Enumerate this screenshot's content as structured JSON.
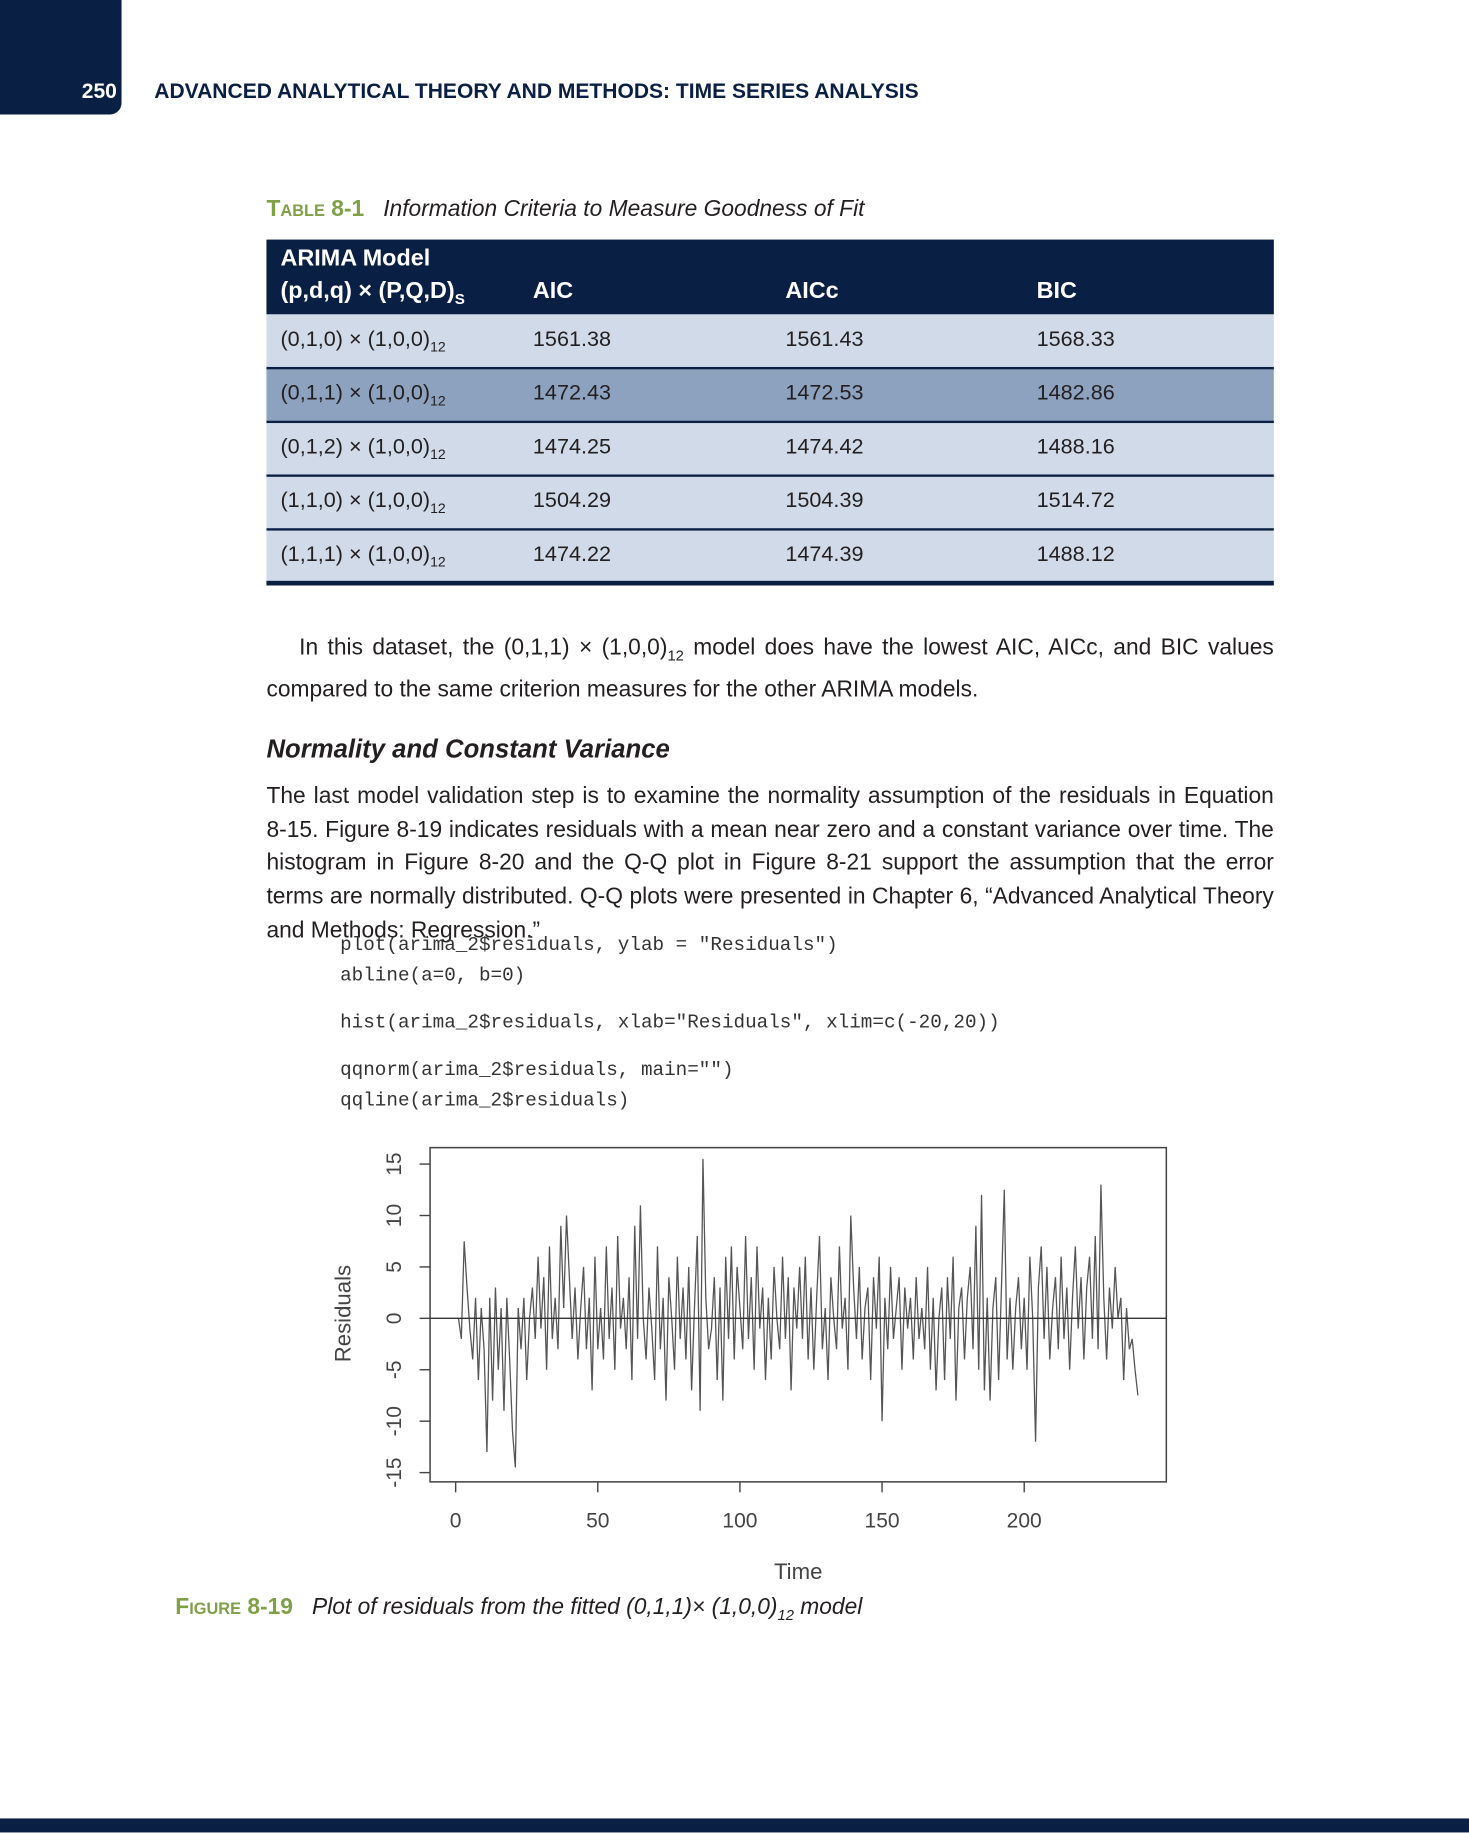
{
  "header": {
    "page_number": "250",
    "running_head": "ADVANCED ANALYTICAL THEORY AND METHODS: TIME SERIES ANALYSIS"
  },
  "table": {
    "label": "Table 8-1",
    "caption": "Information Criteria to Measure Goodness of Fit",
    "head": {
      "model_line1": "ARIMA Model",
      "model_line2": "(p,d,q) × (P,Q,D)",
      "model_sub": "S",
      "aic": "AIC",
      "aicc": "AICc",
      "bic": "BIC"
    },
    "highlighted_row": 1,
    "rows": [
      {
        "model": "(0,1,0) × (1,0,0)",
        "sub": "12",
        "aic": "1561.38",
        "aicc": "1561.43",
        "bic": "1568.33"
      },
      {
        "model": "(0,1,1) × (1,0,0)",
        "sub": "12",
        "aic": "1472.43",
        "aicc": "1472.53",
        "bic": "1482.86"
      },
      {
        "model": "(0,1,2) × (1,0,0)",
        "sub": "12",
        "aic": "1474.25",
        "aicc": "1474.42",
        "bic": "1488.16"
      },
      {
        "model": "(1,1,0) × (1,0,0)",
        "sub": "12",
        "aic": "1504.29",
        "aicc": "1504.39",
        "bic": "1514.72"
      },
      {
        "model": "(1,1,1) × (1,0,0)",
        "sub": "12",
        "aic": "1474.22",
        "aicc": "1474.39",
        "bic": "1488.12"
      }
    ]
  },
  "paragraph_1": [
    "In this dataset, the (0,1,1) × (1,0,0)",
    "12",
    " model does have the lowest AIC, AICc, and BIC values compared to the same criterion measures for the other ARIMA models."
  ],
  "section_heading": "Normality and Constant Variance",
  "paragraph_2": "The last model validation step is to examine the normality assumption of the residuals in Equation 8-15. Figure 8-19 indicates residuals with a mean near zero and a constant variance over time. The histogram in Figure 8-20 and the Q-Q plot in Figure 8-21 support the assumption that the error terms are normally distributed. Q-Q plots were presented in Chapter 6, “Advanced Analytical Theory and Methods: Regression.”",
  "code": [
    [
      "plot(arima_2$residuals, ylab = \"Residuals\")",
      "abline(a=0, b=0)"
    ],
    [
      "hist(arima_2$residuals, xlab=\"Residuals\", xlim=c(-20,20))"
    ],
    [
      "qqnorm(arima_2$residuals, main=\"\")",
      "qqline(arima_2$residuals)"
    ]
  ],
  "chart_data": {
    "type": "line",
    "x_label": "Time",
    "y_label": "Residuals",
    "color": "#555555",
    "hline": 0,
    "xlim": [
      -9,
      250
    ],
    "xticks": [
      0,
      50,
      100,
      150,
      200
    ],
    "ylim": [
      -15.9,
      16.6
    ],
    "yticks": [
      -15,
      -10,
      -5,
      0,
      5,
      10,
      15
    ],
    "x": [
      1,
      2,
      3,
      4,
      5,
      6,
      7,
      8,
      9,
      10,
      11,
      12,
      13,
      14,
      15,
      16,
      17,
      18,
      19,
      20,
      21,
      22,
      23,
      24,
      25,
      26,
      27,
      28,
      29,
      30,
      31,
      32,
      33,
      34,
      35,
      36,
      37,
      38,
      39,
      40,
      41,
      42,
      43,
      44,
      45,
      46,
      47,
      48,
      49,
      50,
      51,
      52,
      53,
      54,
      55,
      56,
      57,
      58,
      59,
      60,
      61,
      62,
      63,
      64,
      65,
      66,
      67,
      68,
      69,
      70,
      71,
      72,
      73,
      74,
      75,
      76,
      77,
      78,
      79,
      80,
      81,
      82,
      83,
      84,
      85,
      86,
      87,
      88,
      89,
      90,
      91,
      92,
      93,
      94,
      95,
      96,
      97,
      98,
      99,
      100,
      101,
      102,
      103,
      104,
      105,
      106,
      107,
      108,
      109,
      110,
      111,
      112,
      113,
      114,
      115,
      116,
      117,
      118,
      119,
      120,
      121,
      122,
      123,
      124,
      125,
      126,
      127,
      128,
      129,
      130,
      131,
      132,
      133,
      134,
      135,
      136,
      137,
      138,
      139,
      140,
      141,
      142,
      143,
      144,
      145,
      146,
      147,
      148,
      149,
      150,
      151,
      152,
      153,
      154,
      155,
      156,
      157,
      158,
      159,
      160,
      161,
      162,
      163,
      164,
      165,
      166,
      167,
      168,
      169,
      170,
      171,
      172,
      173,
      174,
      175,
      176,
      177,
      178,
      179,
      180,
      181,
      182,
      183,
      184,
      185,
      186,
      187,
      188,
      189,
      190,
      191,
      192,
      193,
      194,
      195,
      196,
      197,
      198,
      199,
      200,
      201,
      202,
      203,
      204,
      205,
      206,
      207,
      208,
      209,
      210,
      211,
      212,
      213,
      214,
      215,
      216,
      217,
      218,
      219,
      220,
      221,
      222,
      223,
      224,
      225,
      226,
      227,
      228,
      229,
      230,
      231,
      232,
      233,
      234,
      235,
      236,
      237,
      238,
      239,
      240
    ],
    "values": [
      0,
      -2,
      7.5,
      3,
      -1,
      -4,
      2,
      -6,
      1,
      -3,
      -13,
      2,
      -8,
      3,
      -5,
      1,
      -9,
      2,
      -4,
      -11,
      -14.5,
      1,
      -3,
      2,
      -6,
      0,
      3,
      -2,
      6,
      -1,
      4,
      -5,
      7,
      -2,
      2,
      -3,
      9,
      1,
      10,
      4,
      -2,
      3,
      -4,
      1,
      5,
      -3,
      2,
      -7,
      6,
      -3,
      1,
      -4,
      7,
      -2,
      3,
      -5,
      8,
      -1,
      2,
      -3,
      4,
      -6,
      9,
      -2,
      11,
      0,
      -4,
      3,
      -1,
      -6,
      7,
      -3,
      2,
      -8,
      4,
      0,
      -5,
      6,
      -2,
      3,
      -4,
      5,
      -7,
      1,
      8,
      -9,
      15.5,
      2,
      -3,
      -1,
      4,
      -6,
      3,
      -8,
      6,
      -2,
      7,
      -4,
      5,
      1,
      -3,
      8,
      -2,
      4,
      -5,
      7,
      -1,
      3,
      -6,
      2,
      -4,
      5,
      0,
      -3,
      6,
      -2,
      4,
      -7,
      3,
      -1,
      5,
      -2,
      6,
      -4,
      3,
      -5,
      2,
      8,
      -3,
      1,
      -6,
      4,
      0,
      -3,
      7,
      -1,
      2,
      -5,
      10,
      3,
      -2,
      5,
      -4,
      1,
      3,
      -6,
      4,
      -1,
      6,
      -10,
      2,
      -3,
      5,
      -2,
      1,
      4,
      -5,
      3,
      -1,
      2,
      -4,
      4,
      -2,
      1,
      -3,
      5,
      -5,
      2,
      -7,
      0,
      3,
      -6,
      4,
      -2,
      6,
      -8,
      1,
      3,
      -4,
      2,
      5,
      -3,
      9,
      -5,
      12,
      -7,
      2,
      -8,
      1,
      4,
      -6,
      3,
      12.5,
      -4,
      2,
      -5,
      1,
      4,
      -3,
      2,
      -5,
      6,
      0,
      -12,
      3,
      7,
      -2,
      5,
      -4,
      1,
      4,
      -3,
      6,
      -2,
      3,
      -5,
      2,
      7,
      -1,
      4,
      -4,
      3,
      6,
      -2,
      8,
      -3,
      13,
      2,
      -4,
      3,
      -1,
      5,
      0,
      2,
      -6,
      1,
      -3,
      -2,
      -5,
      -7.5
    ]
  },
  "figure_caption": {
    "label": "Figure 8-19",
    "text": [
      "Plot of residuals from the fitted (0,1,1)× (1,0,0)",
      "12",
      " model"
    ]
  }
}
